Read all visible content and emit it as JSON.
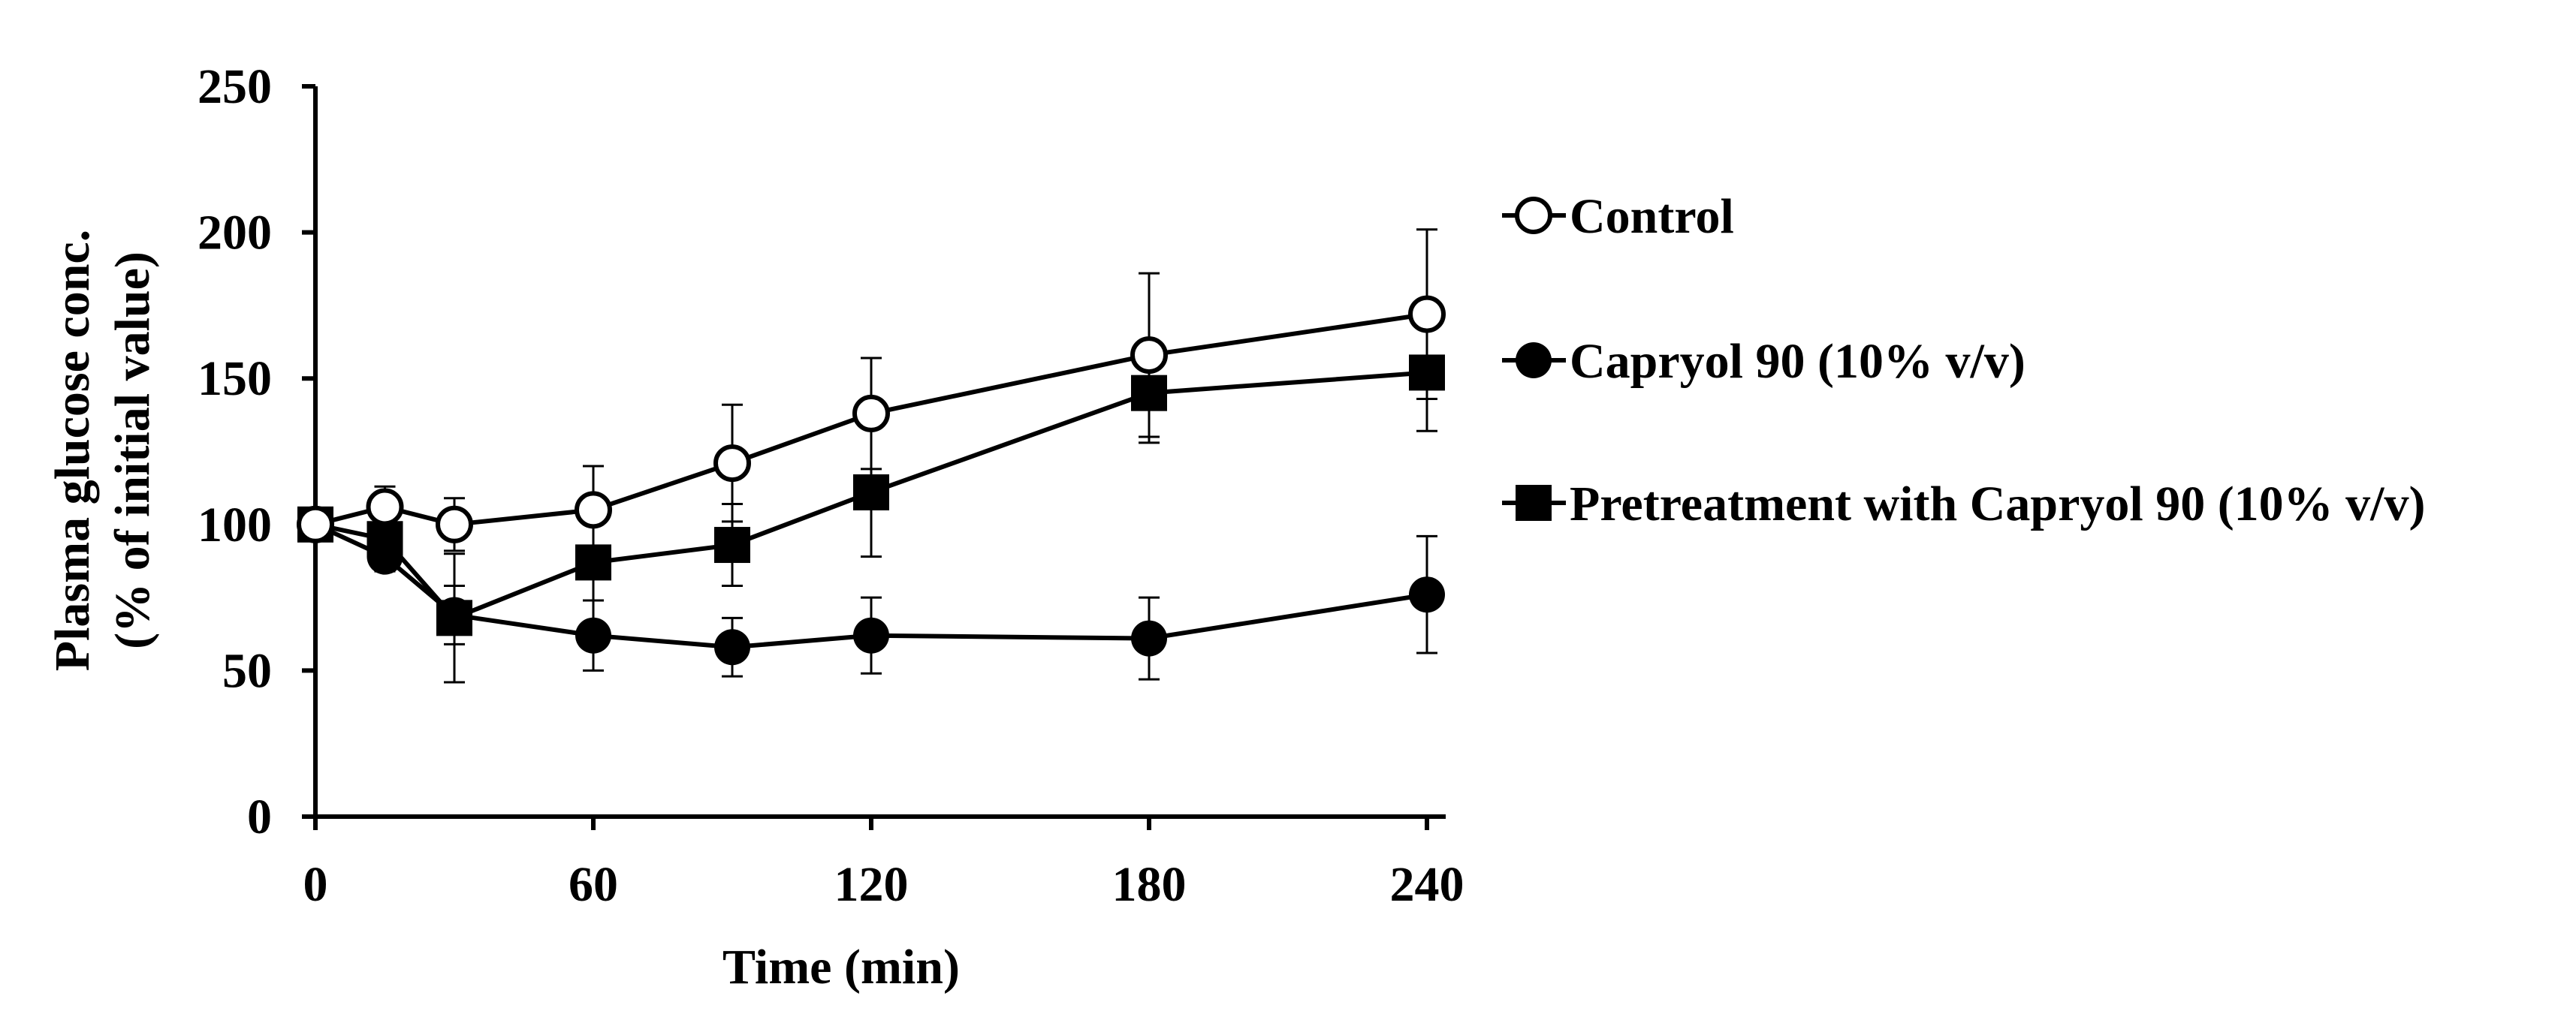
{
  "colors": {
    "ink": "#000000",
    "background": "#ffffff",
    "open_marker_fill": "#ffffff"
  },
  "chart_data": {
    "type": "line",
    "title": "",
    "xlabel": "Time (min)",
    "ylabel_line1": "Plasma glucose conc.",
    "ylabel_line2": "(% of initial value)",
    "xlim": [
      0,
      245
    ],
    "ylim": [
      0,
      250
    ],
    "xticks": [
      0,
      60,
      120,
      180,
      240
    ],
    "xtick_labels": [
      "0",
      "60",
      "120",
      "180",
      "240"
    ],
    "yticks": [
      0,
      50,
      100,
      150,
      200,
      250
    ],
    "ytick_labels": [
      "0",
      "50",
      "100",
      "150",
      "200",
      "250"
    ],
    "grid": false,
    "legend_position": "right",
    "series": [
      {
        "name": "Control",
        "marker": "open-circle",
        "x": [
          0,
          15,
          30,
          60,
          90,
          120,
          180,
          240
        ],
        "y": [
          100,
          106,
          100,
          105,
          121,
          138,
          158,
          172
        ],
        "error": [
          0,
          7,
          9,
          15,
          20,
          19,
          28,
          29
        ]
      },
      {
        "name": "Capryol 90 (10% v/v)",
        "marker": "filled-circle",
        "x": [
          0,
          15,
          30,
          60,
          90,
          120,
          180,
          240
        ],
        "y": [
          100,
          89,
          69,
          62,
          58,
          62,
          61,
          76
        ],
        "error": [
          0,
          5,
          10,
          12,
          10,
          13,
          14,
          20
        ]
      },
      {
        "name": "Pretreatment with Capryol 90 (10% v/v)",
        "marker": "filled-square",
        "x": [
          0,
          15,
          30,
          60,
          90,
          120,
          180,
          240
        ],
        "y": [
          100,
          95,
          68,
          87,
          93,
          111,
          145,
          152
        ],
        "error": [
          0,
          6,
          22,
          13,
          14,
          22,
          17,
          20
        ]
      }
    ]
  }
}
